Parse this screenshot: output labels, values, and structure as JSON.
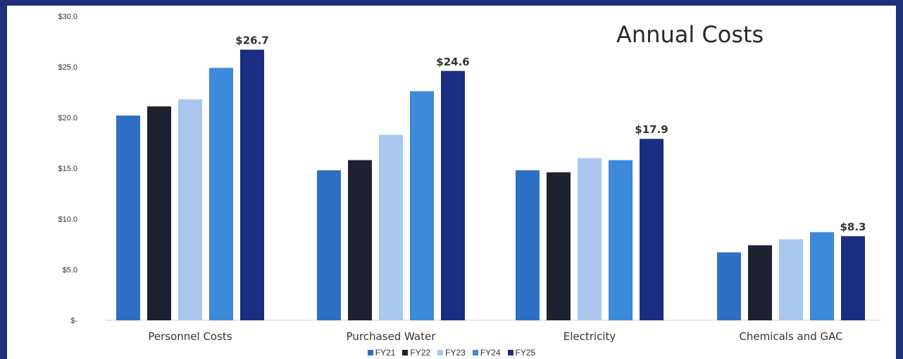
{
  "chart_data": {
    "type": "bar",
    "title": "Annual Costs",
    "categories": [
      "Personnel Costs",
      "Purchased Water",
      "Electricity",
      "Chemicals and GAC"
    ],
    "series": [
      {
        "name": "FY21",
        "color": "#2e6fc6",
        "values": [
          20.2,
          14.8,
          14.8,
          6.7
        ]
      },
      {
        "name": "FY22",
        "color": "#1d2130",
        "values": [
          21.1,
          15.8,
          14.6,
          7.4
        ]
      },
      {
        "name": "FY23",
        "color": "#a9c7ee",
        "values": [
          21.8,
          18.3,
          16.0,
          8.0
        ]
      },
      {
        "name": "FY24",
        "color": "#3c8ad9",
        "values": [
          24.9,
          22.6,
          15.8,
          8.7
        ]
      },
      {
        "name": "FY25",
        "color": "#1b2e82",
        "values": [
          26.7,
          24.6,
          17.9,
          8.3
        ]
      }
    ],
    "data_labels": [
      "$26.7",
      "$24.6",
      "$17.9",
      "$8.3"
    ],
    "y_ticks": [
      "$-",
      "$5.0",
      "$10.0",
      "$15.0",
      "$20.0",
      "$25.0",
      "$30.0"
    ],
    "ylim": [
      0,
      30
    ],
    "grid": false,
    "legend_position": "bottom"
  }
}
